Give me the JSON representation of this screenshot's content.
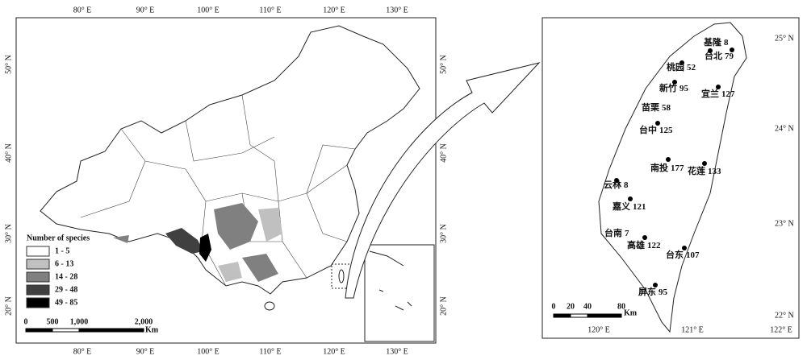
{
  "china_map": {
    "lon_labels": [
      "80° E",
      "90° E",
      "100° E",
      "110° E",
      "120° E",
      "130° E"
    ],
    "lat_labels": [
      "50° N",
      "40° N",
      "30° N",
      "20° N"
    ],
    "legend": {
      "title": "Number of species",
      "items": [
        {
          "label": "1 - 5",
          "color": "#ffffff"
        },
        {
          "label": "6 - 13",
          "color": "#c0c0c0"
        },
        {
          "label": "14 - 28",
          "color": "#808080"
        },
        {
          "label": "29 - 48",
          "color": "#404040"
        },
        {
          "label": "49 - 85",
          "color": "#000000"
        }
      ]
    },
    "scale_bar": {
      "labels": [
        "0",
        "500",
        "1,000",
        "2,000"
      ],
      "unit": "Km"
    }
  },
  "taiwan_map": {
    "lat_labels": [
      "25° N",
      "24° N",
      "23° N",
      "22° N"
    ],
    "lon_labels": [
      "120° E",
      "121° E",
      "122° E"
    ],
    "sites": [
      {
        "name": "基隆",
        "count": 8
      },
      {
        "name": "台北",
        "count": 79
      },
      {
        "name": "桃园",
        "count": 52
      },
      {
        "name": "新竹",
        "count": 95
      },
      {
        "name": "宜兰",
        "count": 127
      },
      {
        "name": "苗栗",
        "count": 58
      },
      {
        "name": "台中",
        "count": 125
      },
      {
        "name": "南投",
        "count": 177
      },
      {
        "name": "花莲",
        "count": 133
      },
      {
        "name": "云林",
        "count": 8
      },
      {
        "name": "嘉义",
        "count": 121
      },
      {
        "name": "台南",
        "count": 7
      },
      {
        "name": "高雄",
        "count": 122
      },
      {
        "name": "台东",
        "count": 107
      },
      {
        "name": "屏东",
        "count": 95
      }
    ],
    "scale_bar": {
      "labels": [
        "0",
        "20",
        "40",
        "80"
      ],
      "unit": "Km"
    }
  }
}
